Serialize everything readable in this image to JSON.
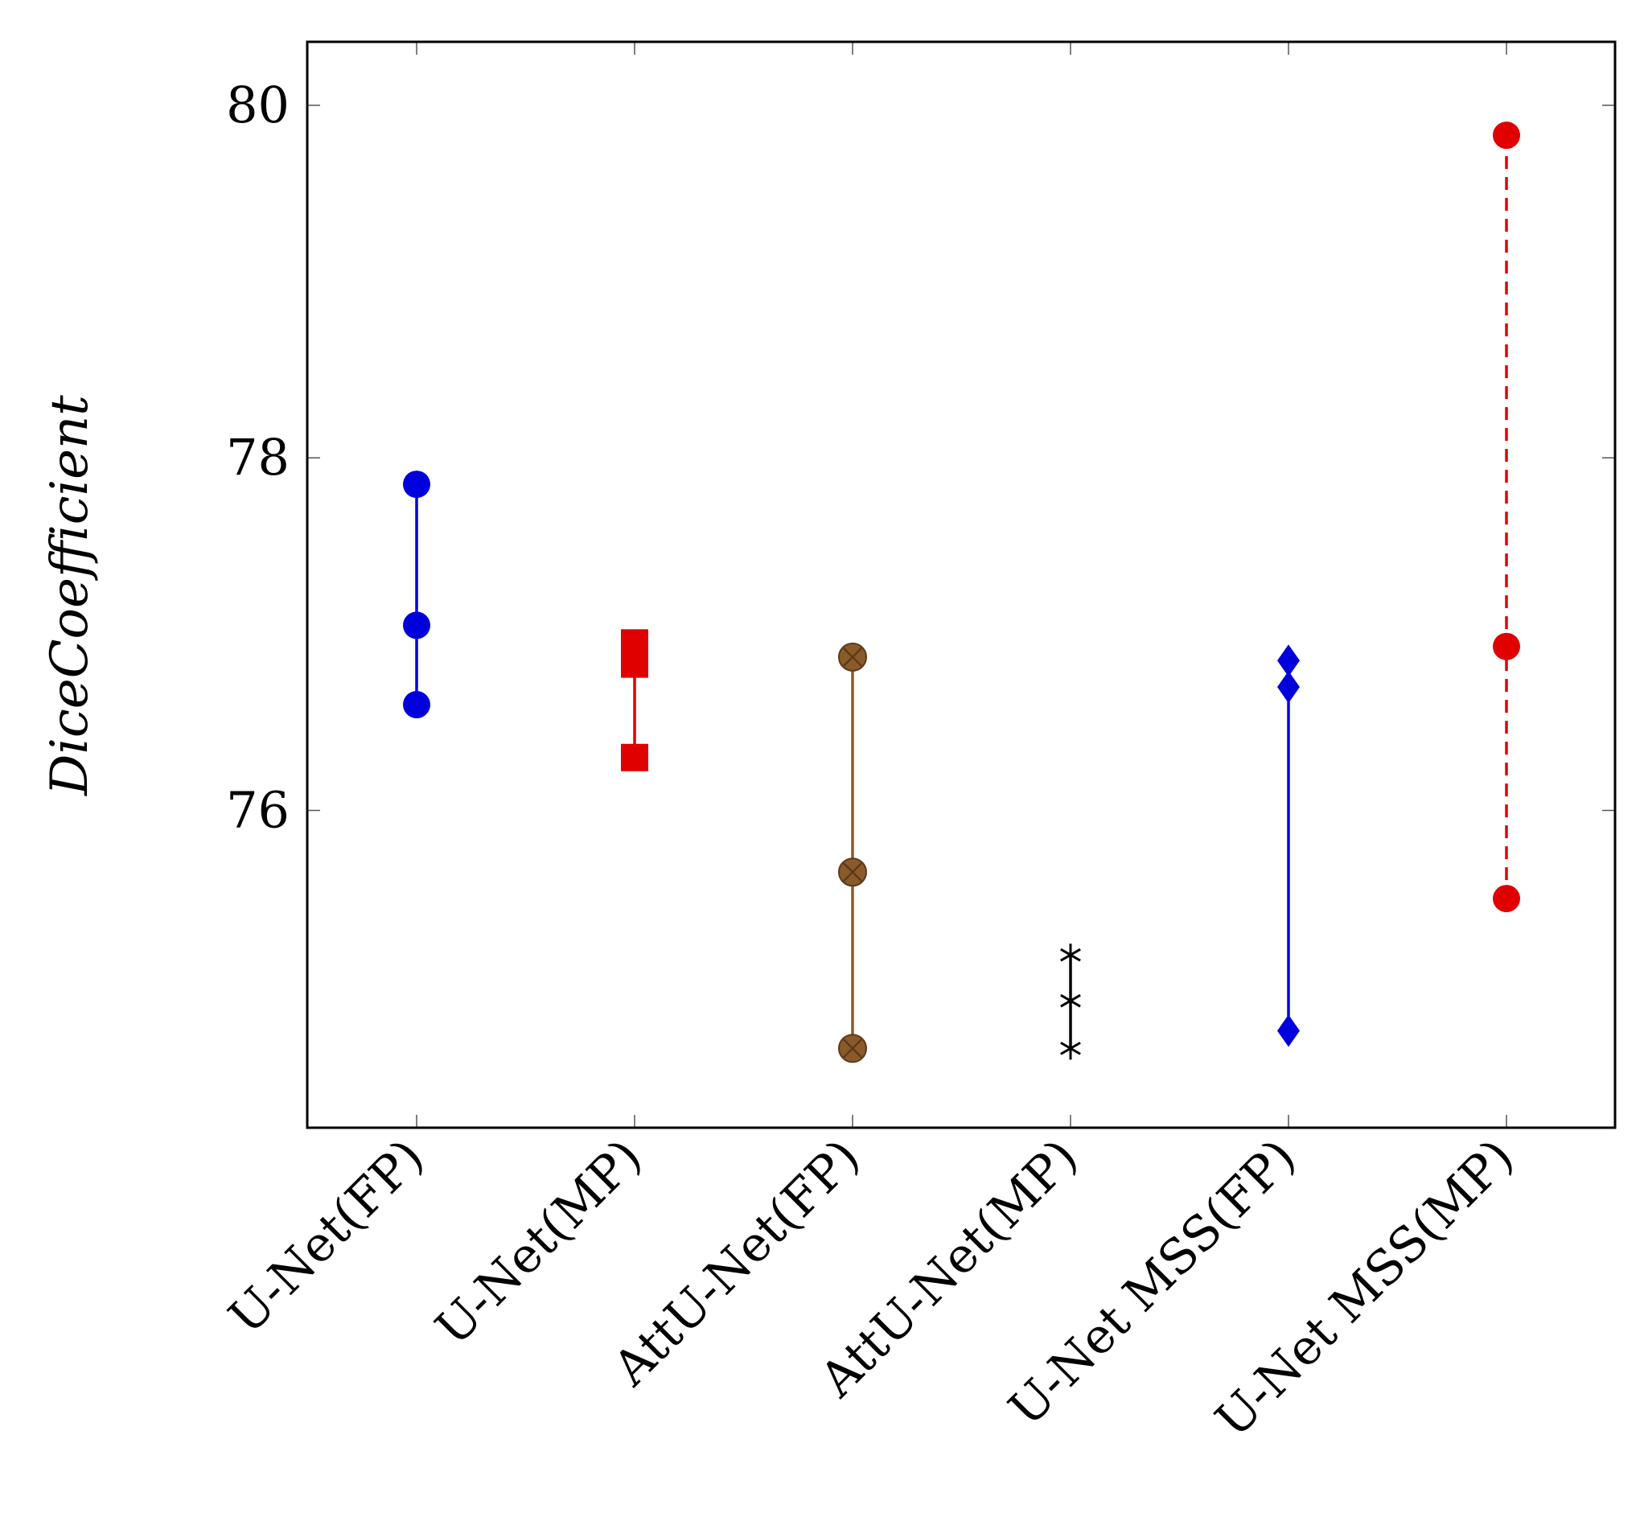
{
  "chart_data": {
    "type": "scatter",
    "title": "",
    "xlabel": "",
    "ylabel": "DiceCoefficient",
    "ylim": [
      74.2,
      80.36
    ],
    "yticks": [
      76,
      78,
      80
    ],
    "grid": false,
    "categories": [
      "U-Net(FP)",
      "U-Net(MP)",
      "AttU-Net(FP)",
      "AttU-Net(MP)",
      "U-Net MSS(FP)",
      "U-Net MSS(MP)"
    ],
    "series": [
      {
        "name": "U-Net(FP)",
        "values": [
          77.85,
          77.05,
          76.6
        ],
        "color": "#0000dd",
        "marker": "circle",
        "line": "solid"
      },
      {
        "name": "U-Net(MP)",
        "values": [
          76.95,
          76.83,
          76.3
        ],
        "color": "#e00000",
        "marker": "square",
        "line": "solid"
      },
      {
        "name": "AttU-Net(FP)",
        "values": [
          76.87,
          75.65,
          74.65
        ],
        "color": "#8b5a2b",
        "marker": "otimes",
        "line": "solid"
      },
      {
        "name": "AttU-Net(MP)",
        "values": [
          75.18,
          74.92,
          74.65
        ],
        "color": "#000000",
        "marker": "asterisk",
        "line": "solid"
      },
      {
        "name": "U-Net MSS(FP)",
        "values": [
          76.85,
          76.7,
          74.75
        ],
        "color": "#0000dd",
        "marker": "diamond",
        "line": "solid"
      },
      {
        "name": "U-Net MSS(MP)",
        "values": [
          79.83,
          76.93,
          75.5
        ],
        "color": "#e00000",
        "marker": "circle",
        "line": "dashed"
      }
    ]
  }
}
